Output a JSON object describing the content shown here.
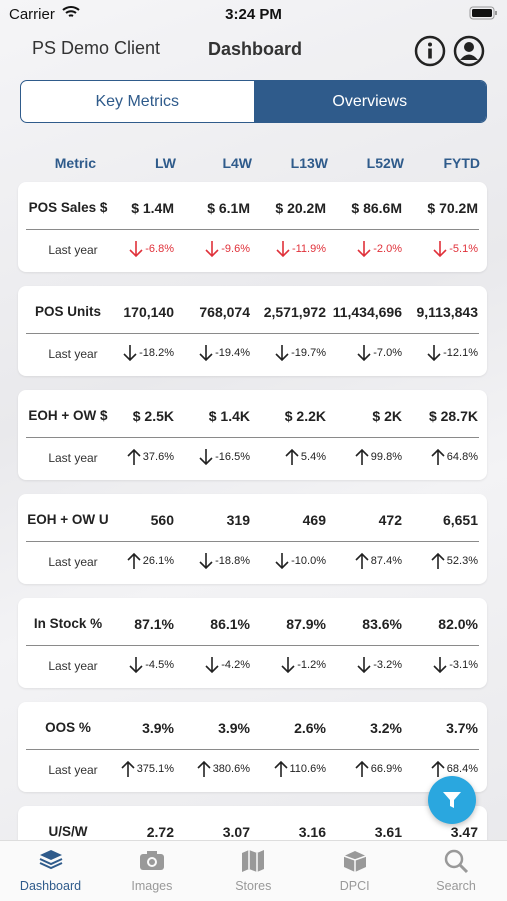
{
  "status_bar": {
    "carrier": "Carrier",
    "time": "3:24 PM"
  },
  "header": {
    "client": "PS Demo Client",
    "title": "Dashboard"
  },
  "tabs": [
    "Key Metrics",
    "Overviews"
  ],
  "table": {
    "columns": [
      "Metric",
      "LW",
      "L4W",
      "L13W",
      "L52W",
      "FYTD"
    ],
    "cards": [
      {
        "metric": "POS Sales $",
        "values": [
          "$ 1.4M",
          "$ 6.1M",
          "$ 20.2M",
          "$ 86.6M",
          "$ 70.2M"
        ],
        "compare_label": "Last year",
        "changes": [
          "-6.8%",
          "-9.6%",
          "-11.9%",
          "-2.0%",
          "-5.1%"
        ],
        "change_color": "#e0313a"
      },
      {
        "metric": "POS Units",
        "values": [
          "170,140",
          "768,074",
          "2,571,972",
          "11,434,696",
          "9,113,843"
        ],
        "compare_label": "Last year",
        "changes": [
          "-18.2%",
          "-19.4%",
          "-19.7%",
          "-7.0%",
          "-12.1%"
        ]
      },
      {
        "metric": "EOH + OW $",
        "values": [
          "$ 2.5K",
          "$ 1.4K",
          "$ 2.2K",
          "$ 2K",
          "$ 28.7K"
        ],
        "compare_label": "Last year",
        "changes": [
          "37.6%",
          "-16.5%",
          "5.4%",
          "99.8%",
          "64.8%"
        ]
      },
      {
        "metric": "EOH + OW U",
        "values": [
          "560",
          "319",
          "469",
          "472",
          "6,651"
        ],
        "compare_label": "Last year",
        "changes": [
          "26.1%",
          "-18.8%",
          "-10.0%",
          "87.4%",
          "52.3%"
        ]
      },
      {
        "metric": "In Stock %",
        "values": [
          "87.1%",
          "86.1%",
          "87.9%",
          "83.6%",
          "82.0%"
        ],
        "compare_label": "Last year",
        "changes": [
          "-4.5%",
          "-4.2%",
          "-1.2%",
          "-3.2%",
          "-3.1%"
        ]
      },
      {
        "metric": "OOS %",
        "values": [
          "3.9%",
          "3.9%",
          "2.6%",
          "3.2%",
          "3.7%"
        ],
        "compare_label": "Last year",
        "changes": [
          "375.1%",
          "380.6%",
          "110.6%",
          "66.9%",
          "68.4%"
        ]
      },
      {
        "metric": "U/S/W",
        "values": [
          "2.72",
          "3.07",
          "3.16",
          "3.61",
          "3.47"
        ]
      }
    ]
  },
  "nav": [
    "Dashboard",
    "Images",
    "Stores",
    "DPCI",
    "Search"
  ]
}
